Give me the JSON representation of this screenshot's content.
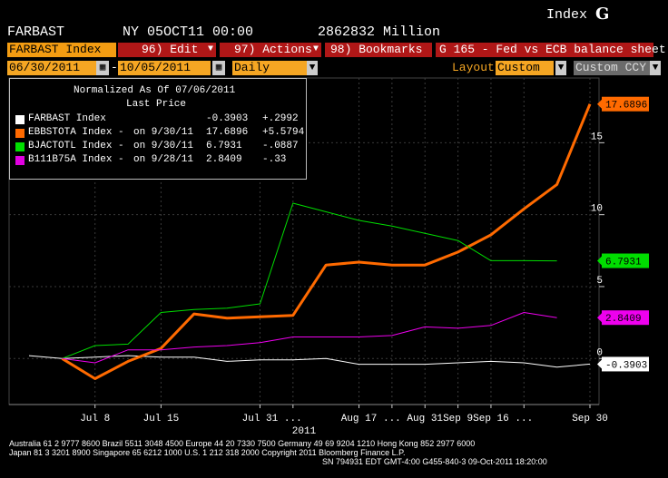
{
  "header": {
    "ticker": "FARBAST",
    "market": "NY",
    "datetime": "05OCT11 00:00",
    "value": "2862832 Million",
    "index_label": "Index",
    "logo": "G"
  },
  "toolbar": {
    "security": "FARBAST Index",
    "edit": "96) Edit",
    "actions": "97) Actions",
    "bookmarks": "98) Bookmarks",
    "function_title": "G 165 - Fed vs ECB balance sheet"
  },
  "range": {
    "start": "06/30/2011",
    "end": "10/05/2011",
    "period": "Daily",
    "layout_label": "Layout",
    "layout_value": "Custom",
    "ccy_value": "Custom CCY"
  },
  "legend": {
    "heading1": "Normalized As Of 07/06/2011",
    "heading2": "Last Price",
    "rows": [
      {
        "name": "FARBAST Index",
        "asof": "",
        "last": "-0.3903",
        "chg": "+.2992",
        "color": "#ffffff"
      },
      {
        "name": "EBBSTOTA Index -",
        "asof": "on 9/30/11",
        "last": "17.6896",
        "chg": "+5.5794",
        "color": "#ff6a00"
      },
      {
        "name": "BJACTOTL Index -",
        "asof": "on 9/30/11",
        "last": "6.7931",
        "chg": "-.0887",
        "color": "#00e000"
      },
      {
        "name": "B111B75A Index -",
        "asof": "on 9/28/11",
        "last": "2.8409",
        "chg": "-.33",
        "color": "#e000e0"
      }
    ]
  },
  "chart_data": {
    "type": "line",
    "x": [
      "Jul 1",
      "Jul 6",
      "Jul 8",
      "Jul 12",
      "Jul 15",
      "Jul 20",
      "Jul 25",
      "Jul 29",
      "Aug 3",
      "Aug 10",
      "Aug 17",
      "Aug 24",
      "Aug 31",
      "Sep 7",
      "Sep 14",
      "Sep 21",
      "Sep 28",
      "Sep 30"
    ],
    "xtick_labels": [
      "Jul 8",
      "Jul 15",
      "Jul 31",
      "...",
      "Aug 17",
      "...",
      "Aug 31",
      "Sep 9",
      "Sep 16",
      "...",
      "Sep 30"
    ],
    "xtick_pos": [
      2,
      4,
      7,
      8,
      10,
      11,
      12,
      13,
      14,
      15,
      17
    ],
    "xlabel": "2011",
    "yticks": [
      0,
      5,
      10,
      15
    ],
    "ylim": [
      -3.2,
      19.5
    ],
    "series": [
      {
        "name": "FARBAST Index",
        "color": "#ffffff",
        "width": 1,
        "values": [
          0.2,
          0,
          0.1,
          0.2,
          0.1,
          0.1,
          -0.2,
          -0.1,
          -0.1,
          0,
          -0.4,
          -0.4,
          -0.4,
          -0.3,
          -0.2,
          -0.3,
          -0.6,
          -0.39
        ]
      },
      {
        "name": "EBBSTOTA Index",
        "color": "#ff6a00",
        "width": 3,
        "values": [
          null,
          0,
          -1.4,
          -0.2,
          0.7,
          3.1,
          2.8,
          2.9,
          3.0,
          6.5,
          6.7,
          6.5,
          6.5,
          7.4,
          8.6,
          10.4,
          12.1,
          17.69
        ]
      },
      {
        "name": "BJACTOTL Index",
        "color": "#00dd00",
        "width": 1,
        "values": [
          null,
          0,
          0.9,
          1.0,
          3.2,
          3.4,
          3.5,
          3.8,
          10.8,
          10.2,
          9.6,
          9.2,
          8.7,
          8.2,
          6.8,
          6.8,
          6.79,
          null
        ]
      },
      {
        "name": "B111B75A Index",
        "color": "#ee00ee",
        "width": 1,
        "values": [
          null,
          0,
          -0.3,
          0.6,
          0.6,
          0.8,
          0.9,
          1.1,
          1.5,
          1.5,
          1.5,
          1.6,
          2.2,
          2.1,
          2.3,
          3.2,
          2.84,
          null
        ]
      }
    ],
    "end_labels": [
      {
        "text": "17.6896",
        "value": 17.6896,
        "color": "#ff6a00"
      },
      {
        "text": "6.7931",
        "value": 6.7931,
        "color": "#00dd00"
      },
      {
        "text": "2.8409",
        "value": 2.8409,
        "color": "#ee00ee"
      },
      {
        "text": "-0.3903",
        "value": -0.3903,
        "color": "#ffffff"
      }
    ]
  },
  "footer": {
    "line1": "Australia 61 2 9777 8600 Brazil 5511 3048 4500 Europe 44 20 7330 7500 Germany 49 69 9204 1210 Hong Kong 852 2977 6000",
    "line2": "Japan 81 3 3201 8900        Singapore 65 6212 1000        U.S. 1 212 318 2000        Copyright 2011 Bloomberg Finance L.P.",
    "line3": "SN 794931 EDT  GMT-4:00 G455-840-3 09-Oct-2011 18:20:00"
  }
}
